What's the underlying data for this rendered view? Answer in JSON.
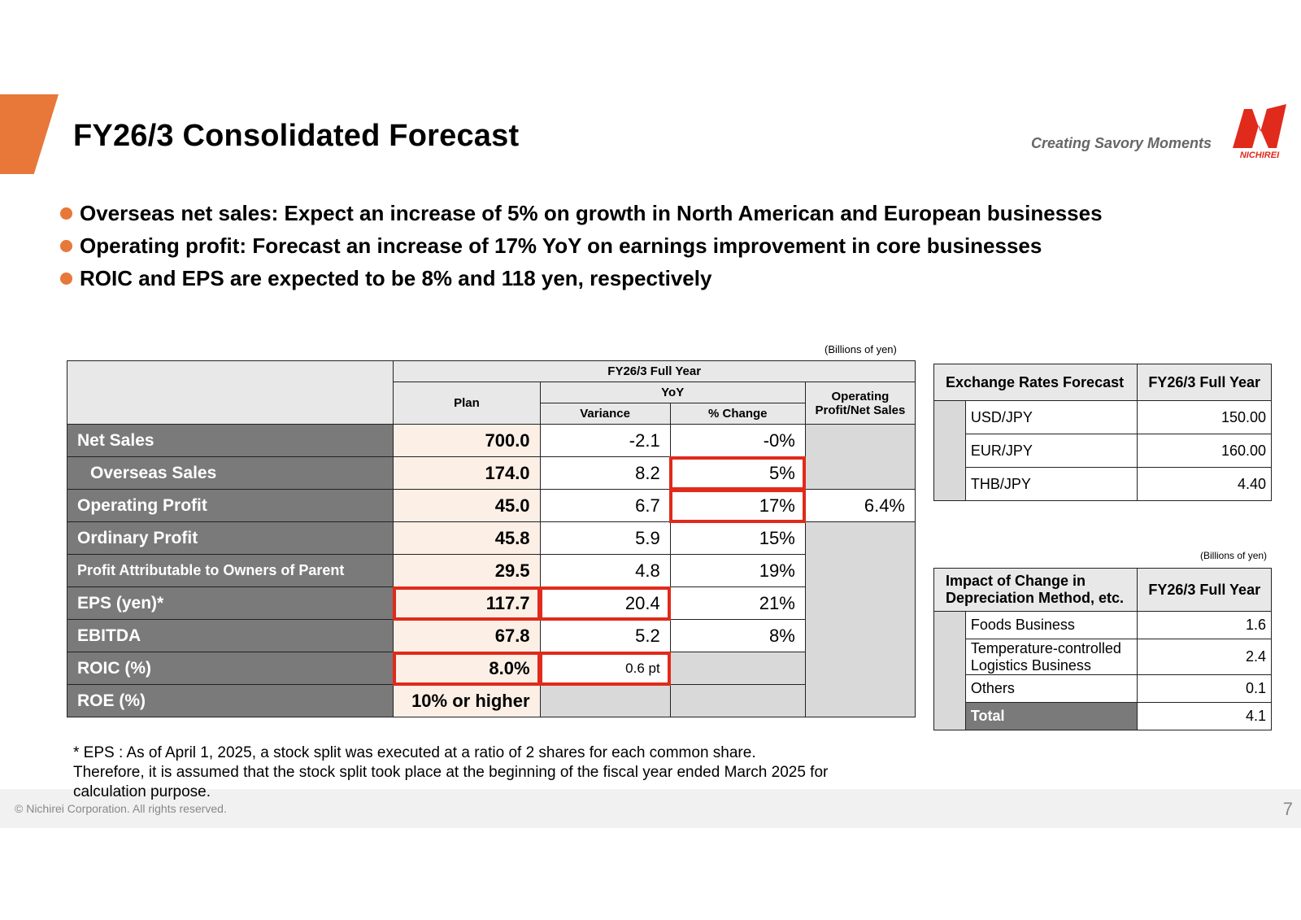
{
  "header": {
    "title": "FY26/3 Consolidated Forecast",
    "tagline": "Creating Savory Moments",
    "logo_text": "NICHIREI",
    "accent_color": "#E8773A",
    "logo_color": "#E02A1B"
  },
  "bullets": [
    "Overseas net sales: Expect an increase of 5% on growth in North American and European businesses",
    "Operating profit: Forecast an increase of 17% YoY on earnings improvement in core businesses",
    "ROIC and EPS are expected to be 8% and 118 yen, respectively"
  ],
  "main_table": {
    "unit": "(Billions of yen)",
    "headers": {
      "period": "FY26/3 Full Year",
      "plan": "Plan",
      "yoy": "YoY",
      "variance": "Variance",
      "pct_change": "% Change",
      "op_margin": "Operating Profit/Net Sales"
    },
    "rows": [
      {
        "label": "Net Sales",
        "plan": "700.0",
        "variance": "-2.1",
        "pct": "-0%"
      },
      {
        "label": "Overseas Sales",
        "plan": "174.0",
        "variance": "8.2",
        "pct": "5%"
      },
      {
        "label": "Operating Profit",
        "plan": "45.0",
        "variance": "6.7",
        "pct": "17%",
        "margin": "6.4%"
      },
      {
        "label": "Ordinary Profit",
        "plan": "45.8",
        "variance": "5.9",
        "pct": "15%"
      },
      {
        "label": "Profit Attributable to Owners of Parent",
        "plan": "29.5",
        "variance": "4.8",
        "pct": "19%"
      },
      {
        "label": "EPS (yen)*",
        "plan": "117.7",
        "variance": "20.4",
        "pct": "21%"
      },
      {
        "label": "EBITDA",
        "plan": "67.8",
        "variance": "5.2",
        "pct": "8%"
      },
      {
        "label": "ROIC (%)",
        "plan": "8.0%",
        "variance": "0.6 pt"
      },
      {
        "label": "ROE (%)",
        "plan": "10% or higher"
      }
    ]
  },
  "fx_table": {
    "header_label": "Exchange Rates Forecast",
    "header_period": "FY26/3 Full Year",
    "rows": [
      {
        "label": "USD/JPY",
        "value": "150.00"
      },
      {
        "label": "EUR/JPY",
        "value": "160.00"
      },
      {
        "label": "THB/JPY",
        "value": "4.40"
      }
    ]
  },
  "dep_table": {
    "unit": "(Billions of yen)",
    "header_label": "Impact of Change in Depreciation Method, etc.",
    "header_period": "FY26/3 Full Year",
    "rows": [
      {
        "label": "Foods Business",
        "value": "1.6"
      },
      {
        "label": "Temperature-controlled Logistics Business",
        "value": "2.4"
      },
      {
        "label": "Others",
        "value": "0.1"
      }
    ],
    "total_label": "Total",
    "total_value": "4.1"
  },
  "note": "* EPS : As of April 1, 2025, a stock split was executed at a ratio of 2 shares for each common share. Therefore, it is assumed that the stock split took place at the beginning of the fiscal year ended March 2025 for calculation purpose.",
  "footer": {
    "copyright": "© Nichirei Corporation. All rights reserved.",
    "page_number": "7"
  }
}
